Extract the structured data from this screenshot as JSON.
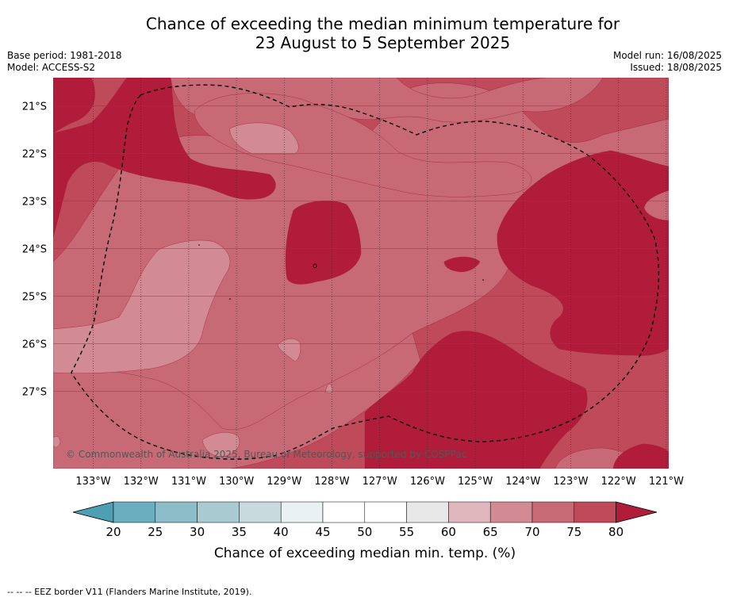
{
  "title": {
    "line1": "Chance of exceeding the median minimum temperature for",
    "line2": "23 August to 5 September 2025"
  },
  "meta_left": {
    "base_period": "Base period: 1981-2018",
    "model": "Model: ACCESS-S2"
  },
  "meta_right": {
    "model_run": "Model run: 16/08/2025",
    "issued": "Issued: 18/08/2025"
  },
  "map": {
    "lat_labels": [
      "21°S",
      "22°S",
      "23°S",
      "24°S",
      "25°S",
      "26°S",
      "27°S"
    ],
    "lon_labels": [
      "133°W",
      "132°W",
      "131°W",
      "130°W",
      "129°W",
      "128°W",
      "127°W",
      "126°W",
      "125°W",
      "124°W",
      "123°W",
      "122°W",
      "121°W"
    ],
    "copyright": "© Commonwealth of Australia 2025, Bureau of Meteorology, supported by COSPPac",
    "fill_colors": {
      "p60_65": "#dfb6bc",
      "p65_70": "#d38b93",
      "p70_75": "#c86a76",
      "p75_80": "#bf4a59",
      "p80_plus": "#b21c3b"
    }
  },
  "colorbar": {
    "ticks": [
      "20",
      "25",
      "30",
      "35",
      "40",
      "45",
      "50",
      "55",
      "60",
      "65",
      "70",
      "75",
      "80"
    ],
    "colors": [
      "#6aaebf",
      "#8bbcc8",
      "#a9cad1",
      "#c9dadf",
      "#eaf1f3",
      "#ffffff",
      "#ffffff",
      "#e8e8e8",
      "#dfb6bc",
      "#d38b93",
      "#c86a76",
      "#bf4a59"
    ],
    "low_extend_color": "#4e9fb3",
    "high_extend_color": "#b21c3b",
    "label": "Chance of exceeding median min. temp. (%)"
  },
  "footnote": "--  --  -- EEZ border V11 (Flanders Marine Institute, 2019)."
}
